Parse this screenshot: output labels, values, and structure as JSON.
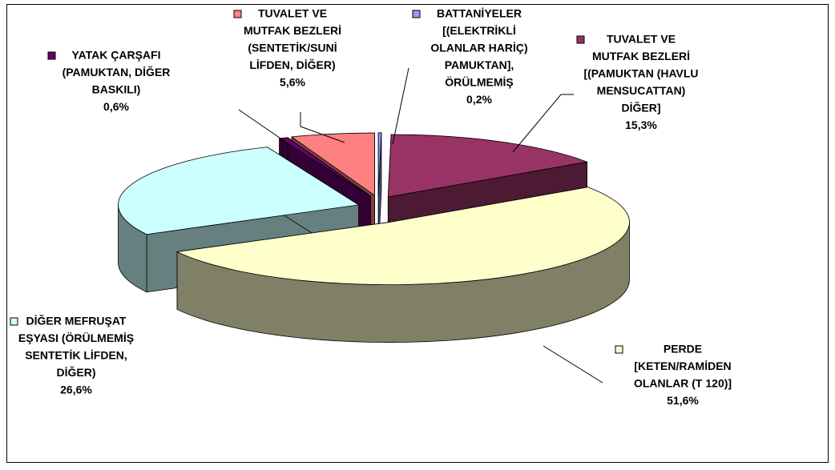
{
  "chart_data": {
    "type": "pie3d",
    "categories": [
      [
        "BATTANİYELER",
        "[(ELEKTRİKLİ",
        "OLANLAR HARİÇ)",
        "PAMUKTAN],",
        "ÖRÜLMEMİŞ"
      ],
      [
        "TUVALET VE",
        "MUTFAK BEZLERİ",
        "[(PAMUKTAN (HAVLU",
        "MENSUCATTAN)",
        "DİĞER]"
      ],
      [
        "PERDE",
        "[KETEN/RAMİDEN",
        "OLANLAR (T 120)]"
      ],
      [
        "DİĞER MEFRUŞAT",
        "EŞYASI (ÖRÜLMEMİŞ",
        "SENTETİK LİFDEN,",
        "DİĞER)"
      ],
      [
        "YATAK ÇARŞAFI",
        "(PAMUKTAN, DİĞER",
        "BASKILI)"
      ],
      [
        "TUVALET VE",
        "MUTFAK BEZLERİ",
        "(SENTETİK/SUNİ",
        "LİFDEN, DİĞER)"
      ]
    ],
    "values": [
      0.2,
      15.3,
      51.6,
      26.6,
      0.6,
      5.6
    ],
    "value_labels": [
      "0,2%",
      "15,3%",
      "51,6%",
      "26,6%",
      "0,6%",
      "5,6%"
    ],
    "colors": [
      "#9999ff",
      "#993366",
      "#ffffcc",
      "#ccffff",
      "#660066",
      "#ff8080"
    ]
  }
}
